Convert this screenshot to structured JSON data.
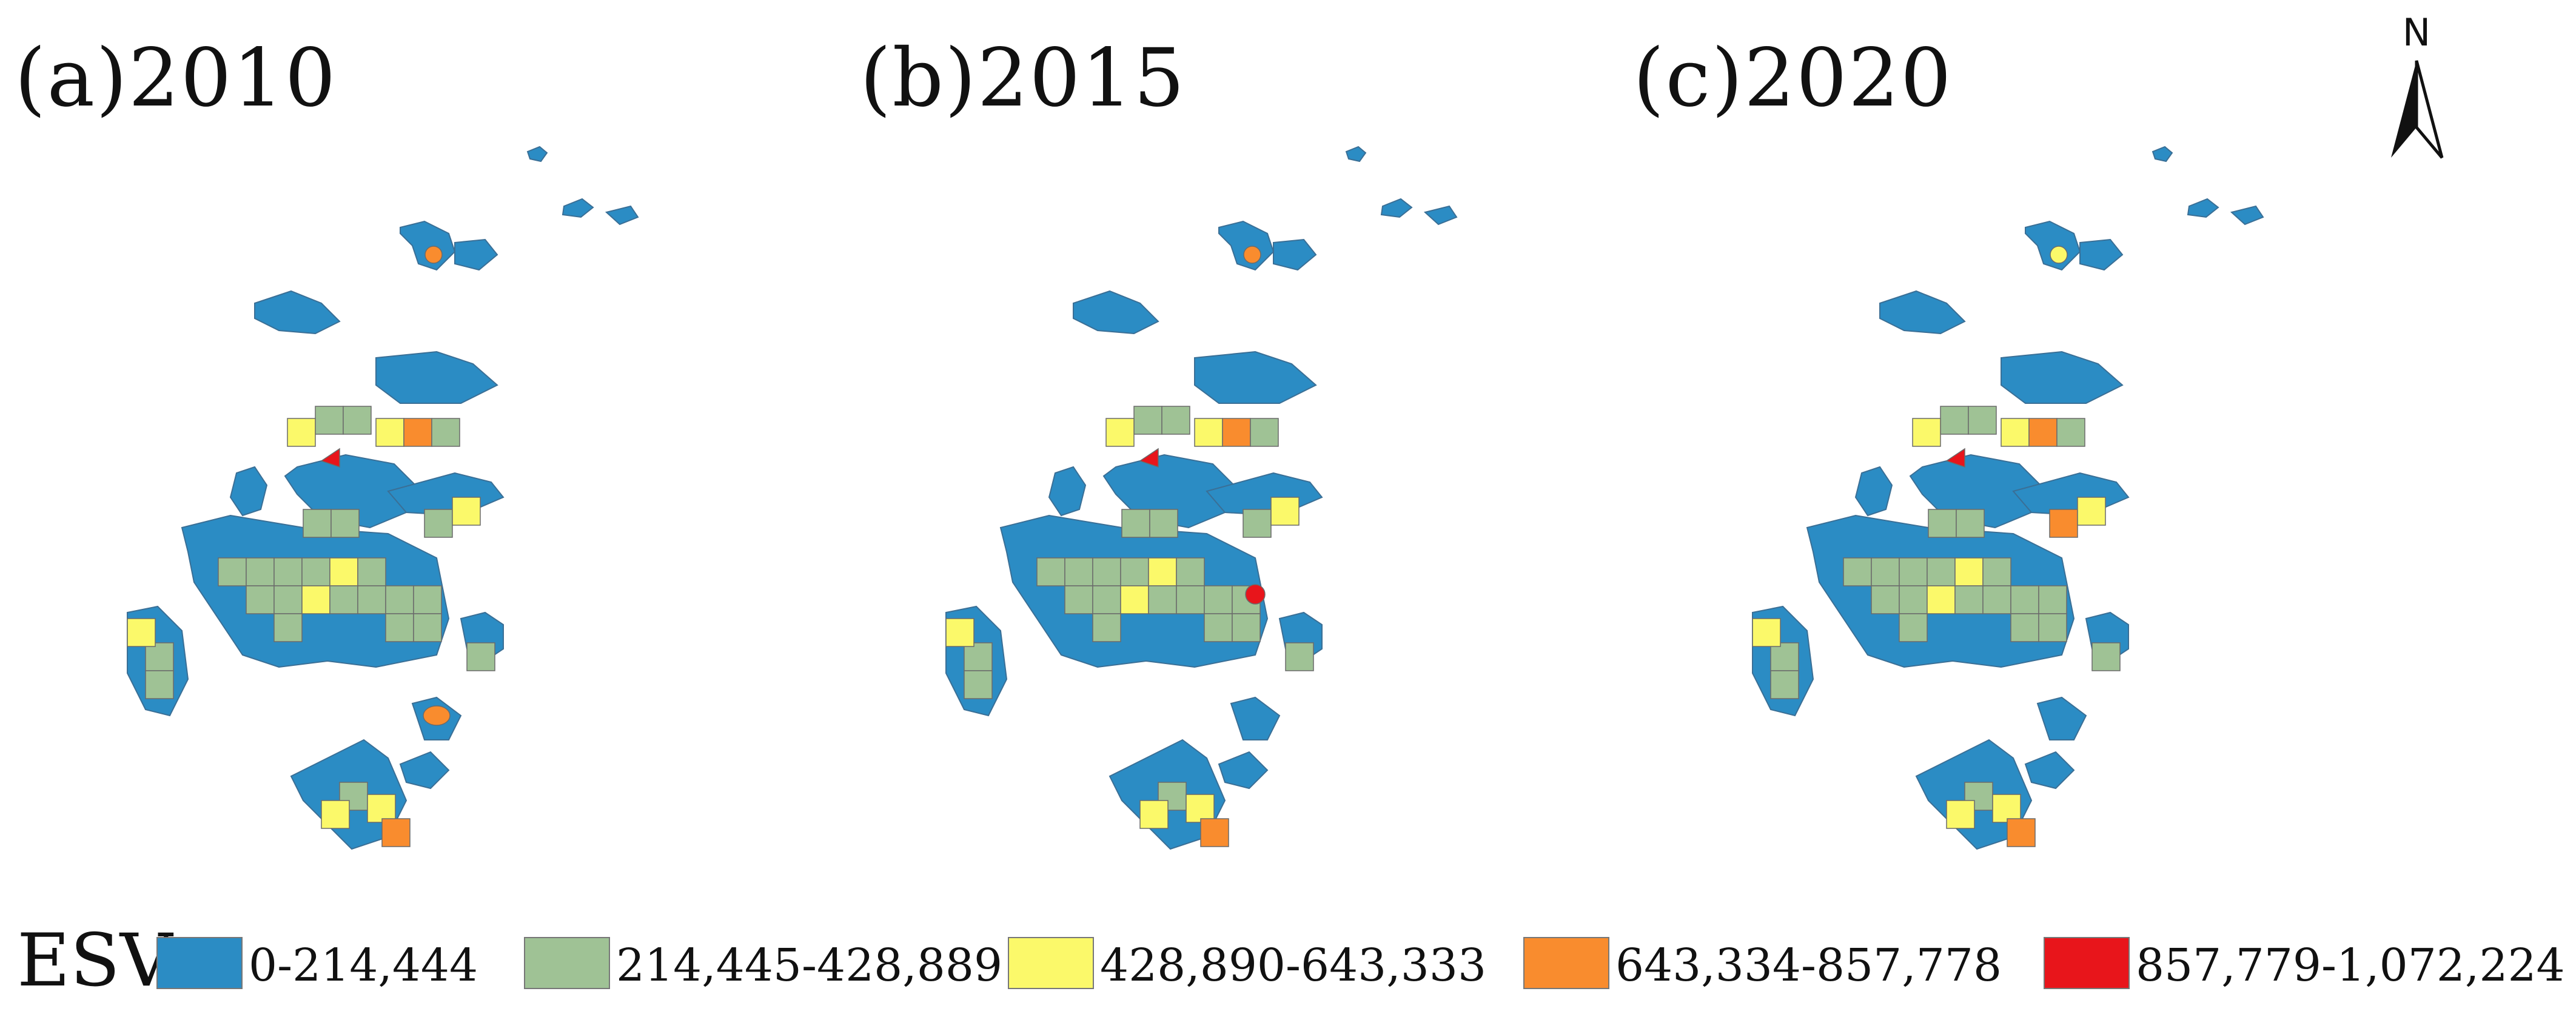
{
  "panels": [
    {
      "label": "(a)2010"
    },
    {
      "label": "(b)2015"
    },
    {
      "label": "(c)2020"
    }
  ],
  "north_arrow": {
    "label": "N"
  },
  "legend": {
    "title": "ESV",
    "items": [
      {
        "label": "0-214,444",
        "color": "#2b8cc4"
      },
      {
        "label": "214,445-428,889",
        "color": "#9fc295"
      },
      {
        "label": "428,890-643,333",
        "color": "#fbf96a"
      },
      {
        "label": "643,334-857,778",
        "color": "#f98c2e"
      },
      {
        "label": "857,779-1,072,224",
        "color": "#e8151b"
      }
    ]
  },
  "colors": {
    "class_1": "#2b8cc4",
    "class_2": "#9fc295",
    "class_3": "#fbf96a",
    "class_4": "#f98c2e",
    "class_5": "#e8151b"
  }
}
